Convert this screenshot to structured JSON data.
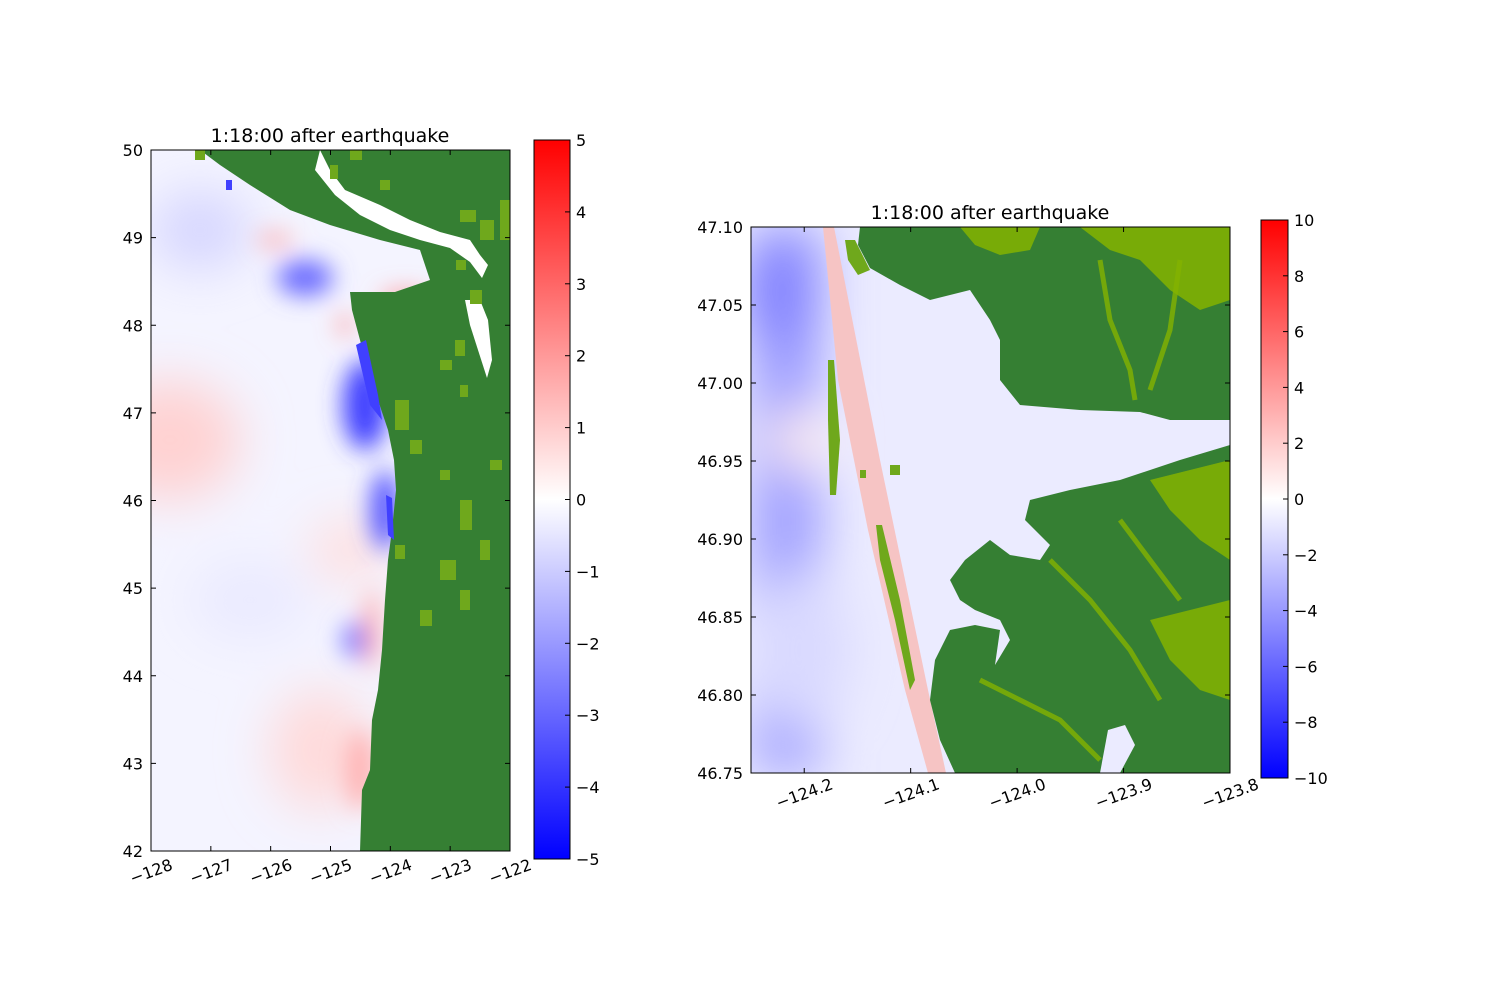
{
  "colors": {
    "land_dark": "#357f33",
    "land_light": "#6fa81c",
    "land_lime": "#84b300",
    "positive": "#ff0000",
    "zero": "#ffffff",
    "negative": "#0000ff"
  },
  "chart_data": [
    {
      "type": "heatmap",
      "title": "1:18:00 after earthquake",
      "xlabel": "",
      "ylabel": "",
      "xlim": [
        -128,
        -122
      ],
      "ylim": [
        42,
        50
      ],
      "x_ticks": [
        -128,
        -127,
        -126,
        -125,
        -124,
        -123,
        -122
      ],
      "x_tick_labels": [
        "−128",
        "−127",
        "−126",
        "−125",
        "−124",
        "−123",
        "−122"
      ],
      "y_ticks": [
        42,
        43,
        44,
        45,
        46,
        47,
        48,
        49,
        50
      ],
      "y_tick_labels": [
        "42",
        "43",
        "44",
        "45",
        "46",
        "47",
        "48",
        "49",
        "50"
      ],
      "colorbar": {
        "range": [
          -5,
          5
        ],
        "ticks": [
          -5,
          -4,
          -3,
          -2,
          -1,
          0,
          1,
          2,
          3,
          4,
          5
        ],
        "tick_labels": [
          "−5",
          "−4",
          "−3",
          "−2",
          "−1",
          "0",
          "1",
          "2",
          "3",
          "4",
          "5"
        ],
        "colormap": "bwr"
      },
      "land_color": "#357f33",
      "coastline": [
        [
          -127.3,
          50
        ],
        [
          -126.8,
          49.6
        ],
        [
          -125.9,
          49.2
        ],
        [
          -125.2,
          48.75
        ],
        [
          -124.7,
          48.45
        ],
        [
          -124.6,
          48.3
        ],
        [
          -124.4,
          47.9
        ],
        [
          -124.2,
          47.3
        ],
        [
          -124.1,
          46.9
        ],
        [
          -124.05,
          46.2
        ],
        [
          -124.0,
          45.5
        ],
        [
          -124.05,
          44.8
        ],
        [
          -124.1,
          44.2
        ],
        [
          -124.2,
          43.6
        ],
        [
          -124.4,
          43.0
        ],
        [
          -124.5,
          42.0
        ]
      ],
      "features": [
        {
          "lon": -125.3,
          "lat": 48.5,
          "value": -2.8
        },
        {
          "lon": -124.5,
          "lat": 47.2,
          "value": -4.5
        },
        {
          "lon": -124.25,
          "lat": 45.8,
          "value": -4.0
        },
        {
          "lon": -124.65,
          "lat": 44.4,
          "value": -2.4
        },
        {
          "lon": -127.5,
          "lat": 46.7,
          "value": 0.7
        },
        {
          "lon": -124.4,
          "lat": 43.0,
          "value": 1.3
        },
        {
          "lon": -125.7,
          "lat": 48.9,
          "value": 1.0
        },
        {
          "lon": -124.2,
          "lat": 48.3,
          "value": 1.2
        },
        {
          "lon": -124.5,
          "lat": 44.6,
          "value": 1.4
        }
      ]
    },
    {
      "type": "heatmap",
      "title": "1:18:00 after earthquake",
      "xlabel": "",
      "ylabel": "",
      "xlim": [
        -124.25,
        -123.8
      ],
      "ylim": [
        46.75,
        47.1
      ],
      "x_ticks": [
        -124.2,
        -124.1,
        -124.0,
        -123.9,
        -123.8
      ],
      "x_tick_labels": [
        "−124.2",
        "−124.1",
        "−124.0",
        "−123.9",
        "−123.8"
      ],
      "y_ticks": [
        46.75,
        46.8,
        46.85,
        46.9,
        46.95,
        47.0,
        47.05,
        47.1
      ],
      "y_tick_labels": [
        "46.75",
        "46.80",
        "46.85",
        "46.90",
        "46.95",
        "47.00",
        "47.05",
        "47.10"
      ],
      "colorbar": {
        "range": [
          -10,
          10
        ],
        "ticks": [
          -10,
          -8,
          -6,
          -4,
          -2,
          0,
          2,
          4,
          6,
          8,
          10
        ],
        "tick_labels": [
          "−10",
          "−8",
          "−6",
          "−4",
          "−2",
          "0",
          "2",
          "4",
          "6",
          "8",
          "10"
        ],
        "colormap": "bwr"
      },
      "land_color": "#357f33",
      "features": [
        {
          "lon": -124.22,
          "lat": 47.03,
          "value": -4.5
        },
        {
          "lon": -124.1,
          "lat": 46.86,
          "value": 1.8
        },
        {
          "lon": -124.2,
          "lat": 46.96,
          "value": 1.2
        },
        {
          "lon": -124.0,
          "lat": 46.98,
          "value": -1.0
        }
      ]
    }
  ]
}
